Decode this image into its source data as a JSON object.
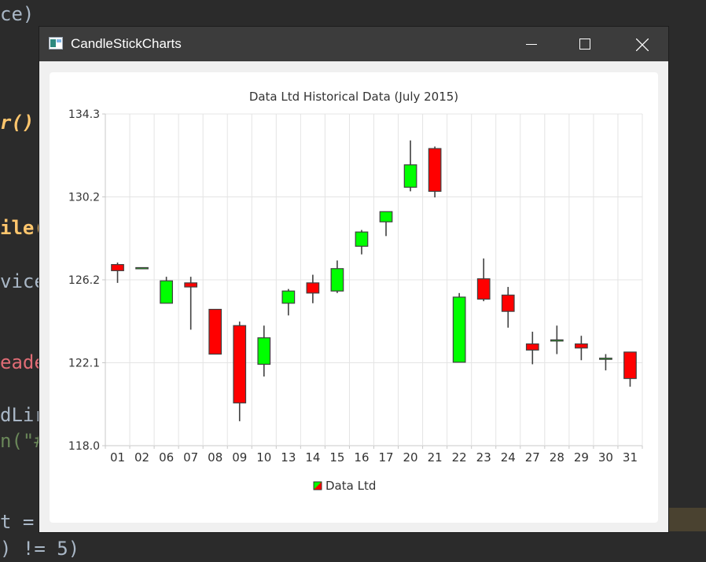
{
  "window": {
    "title": "CandleStickCharts",
    "controls": [
      "minimize",
      "maximize",
      "close"
    ]
  },
  "background_code": [
    {
      "text": "ce)"
    },
    {
      "text": "r()"
    },
    {
      "text": "ile("
    },
    {
      "text": "vice"
    },
    {
      "text": "eade"
    },
    {
      "text": "dLir"
    },
    {
      "text": "n(\"#"
    },
    {
      "text": "t ="
    },
    {
      "text": ") != 5)"
    }
  ],
  "chart_data": {
    "type": "candlestick",
    "title": "Data Ltd Historical Data (July 2015)",
    "ylim": [
      118.0,
      134.3
    ],
    "y_ticks": [
      "134.3",
      "130.2",
      "126.2",
      "122.1",
      "118.0"
    ],
    "categories": [
      "01",
      "02",
      "06",
      "07",
      "08",
      "09",
      "10",
      "13",
      "14",
      "15",
      "16",
      "17",
      "20",
      "21",
      "22",
      "23",
      "24",
      "27",
      "28",
      "29",
      "30",
      "31"
    ],
    "series": [
      {
        "name": "Data Ltd",
        "increasing_color": "#00ff00",
        "decreasing_color": "#ff0000",
        "candles": [
          {
            "open": 126.9,
            "high": 127.0,
            "low": 126.0,
            "close": 126.6
          },
          {
            "open": 126.75,
            "high": 126.75,
            "low": 126.75,
            "close": 126.75
          },
          {
            "open": 125.0,
            "high": 126.3,
            "low": 125.0,
            "close": 126.1
          },
          {
            "open": 126.0,
            "high": 126.3,
            "low": 123.7,
            "close": 125.8
          },
          {
            "open": 124.7,
            "high": 124.7,
            "low": 122.5,
            "close": 122.5
          },
          {
            "open": 123.9,
            "high": 124.1,
            "low": 119.2,
            "close": 120.1
          },
          {
            "open": 122.0,
            "high": 123.9,
            "low": 121.4,
            "close": 123.3
          },
          {
            "open": 125.0,
            "high": 125.7,
            "low": 124.4,
            "close": 125.6
          },
          {
            "open": 126.0,
            "high": 126.4,
            "low": 125.0,
            "close": 125.5
          },
          {
            "open": 125.6,
            "high": 127.1,
            "low": 125.5,
            "close": 126.7
          },
          {
            "open": 127.8,
            "high": 128.6,
            "low": 127.4,
            "close": 128.5
          },
          {
            "open": 129.0,
            "high": 129.5,
            "low": 128.3,
            "close": 129.5
          },
          {
            "open": 130.7,
            "high": 133.0,
            "low": 130.5,
            "close": 131.8
          },
          {
            "open": 132.6,
            "high": 132.7,
            "low": 130.2,
            "close": 130.5
          },
          {
            "open": 122.1,
            "high": 125.5,
            "low": 122.1,
            "close": 125.3
          },
          {
            "open": 126.2,
            "high": 127.2,
            "low": 125.1,
            "close": 125.2
          },
          {
            "open": 125.4,
            "high": 125.8,
            "low": 123.8,
            "close": 124.6
          },
          {
            "open": 123.0,
            "high": 123.6,
            "low": 122.0,
            "close": 122.7
          },
          {
            "open": 123.2,
            "high": 123.9,
            "low": 122.5,
            "close": 123.2
          },
          {
            "open": 123.0,
            "high": 123.4,
            "low": 122.2,
            "close": 122.8
          },
          {
            "open": 122.3,
            "high": 122.5,
            "low": 121.7,
            "close": 122.3
          },
          {
            "open": 122.6,
            "high": 122.6,
            "low": 120.9,
            "close": 121.3
          }
        ]
      }
    ],
    "legend": {
      "label": "Data Ltd",
      "position": "bottom"
    },
    "grid": true
  }
}
